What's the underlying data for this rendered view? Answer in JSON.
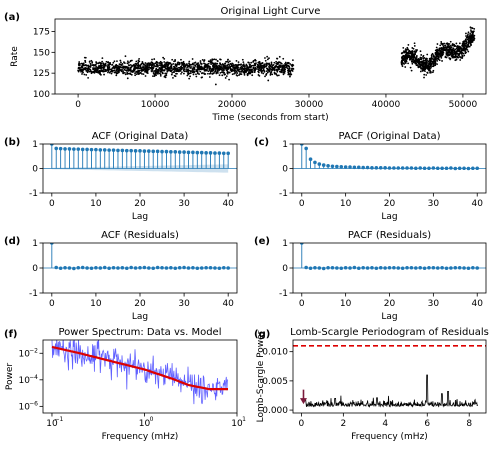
{
  "figure": {
    "background": "#ffffff"
  },
  "chart_data": [
    {
      "panel": "(a)",
      "type": "scatter",
      "title": "Original Light Curve",
      "xlabel": "Time (seconds from start)",
      "ylabel": "Rate",
      "xlim": [
        -3000,
        53000
      ],
      "ylim": [
        100,
        190
      ],
      "xticks": [
        0,
        10000,
        20000,
        30000,
        40000,
        50000
      ],
      "yticks": [
        100,
        125,
        150,
        175
      ],
      "color": "#000000",
      "segments": [
        {
          "x_range": [
            0,
            28000
          ],
          "mean": 131,
          "scatter": 8
        },
        {
          "x_range": [
            42000,
            51500
          ],
          "mean": 140,
          "scatter": 9,
          "rise_to": 165
        }
      ],
      "series": [
        {
          "x": [
            0,
            5000,
            10000,
            15000,
            20000,
            25000,
            28000,
            42000,
            45000,
            47000,
            49000,
            51000
          ],
          "y": [
            133,
            130,
            129,
            131,
            130,
            128,
            132,
            138,
            142,
            152,
            150,
            162
          ]
        }
      ]
    },
    {
      "panel": "(b)",
      "type": "stem",
      "title": "ACF (Original Data)",
      "xlabel": "Lag",
      "ylabel": "",
      "xlim": [
        -2,
        42
      ],
      "ylim": [
        -1,
        1
      ],
      "xticks": [
        0,
        10,
        20,
        30,
        40
      ],
      "yticks": [
        -1,
        0,
        1
      ],
      "color": "#1f77b4",
      "confidence_band": "shaded",
      "lags": [
        0,
        1,
        2,
        3,
        4,
        5,
        6,
        7,
        8,
        9,
        10,
        11,
        12,
        13,
        14,
        15,
        16,
        17,
        18,
        19,
        20,
        21,
        22,
        23,
        24,
        25,
        26,
        27,
        28,
        29,
        30,
        31,
        32,
        33,
        34,
        35,
        36,
        37,
        38,
        39,
        40
      ],
      "values": [
        1.0,
        0.82,
        0.81,
        0.8,
        0.8,
        0.79,
        0.79,
        0.78,
        0.78,
        0.77,
        0.77,
        0.76,
        0.76,
        0.75,
        0.75,
        0.74,
        0.74,
        0.73,
        0.73,
        0.72,
        0.72,
        0.71,
        0.71,
        0.7,
        0.7,
        0.69,
        0.69,
        0.68,
        0.68,
        0.67,
        0.67,
        0.66,
        0.66,
        0.65,
        0.65,
        0.64,
        0.64,
        0.63,
        0.63,
        0.62,
        0.62
      ]
    },
    {
      "panel": "(c)",
      "type": "stem",
      "title": "PACF (Original Data)",
      "xlabel": "Lag",
      "ylabel": "",
      "xlim": [
        -2,
        42
      ],
      "ylim": [
        -1,
        1
      ],
      "xticks": [
        0,
        10,
        20,
        30,
        40
      ],
      "yticks": [
        -1,
        0,
        1
      ],
      "color": "#1f77b4",
      "lags": [
        0,
        1,
        2,
        3,
        4,
        5,
        6,
        7,
        8,
        9,
        10,
        11,
        12,
        13,
        14,
        15,
        16,
        17,
        18,
        19,
        20,
        21,
        22,
        23,
        24,
        25,
        26,
        27,
        28,
        29,
        30,
        31,
        32,
        33,
        34,
        35,
        36,
        37,
        38,
        39,
        40
      ],
      "values": [
        1.0,
        0.82,
        0.38,
        0.25,
        0.18,
        0.14,
        0.11,
        0.09,
        0.08,
        0.07,
        0.06,
        0.06,
        0.05,
        0.05,
        0.04,
        0.04,
        0.03,
        0.03,
        0.03,
        0.03,
        0.02,
        0.02,
        0.02,
        0.02,
        0.02,
        0.02,
        0.01,
        0.02,
        0.01,
        0.01,
        0.02,
        0.01,
        0.01,
        0.01,
        0.02,
        0.0,
        0.01,
        0.01,
        0.0,
        0.01,
        0.01
      ]
    },
    {
      "panel": "(d)",
      "type": "stem",
      "title": "ACF (Residuals)",
      "xlabel": "Lag",
      "ylabel": "",
      "xlim": [
        -2,
        42
      ],
      "ylim": [
        -1,
        1
      ],
      "xticks": [
        0,
        10,
        20,
        30,
        40
      ],
      "yticks": [
        -1,
        0,
        1
      ],
      "color": "#1f77b4",
      "lags": [
        0,
        1,
        2,
        3,
        4,
        5,
        6,
        7,
        8,
        9,
        10,
        11,
        12,
        13,
        14,
        15,
        16,
        17,
        18,
        19,
        20,
        21,
        22,
        23,
        24,
        25,
        26,
        27,
        28,
        29,
        30,
        31,
        32,
        33,
        34,
        35,
        36,
        37,
        38,
        39,
        40
      ],
      "values": [
        1.0,
        0.02,
        -0.01,
        0.01,
        0.0,
        -0.02,
        0.01,
        0.02,
        0.0,
        -0.01,
        0.01,
        0.0,
        0.02,
        -0.01,
        0.01,
        0.0,
        0.01,
        -0.01,
        0.02,
        0.0,
        0.01,
        0.02,
        0.0,
        -0.01,
        0.02,
        0.01,
        0.0,
        0.01,
        -0.01,
        0.01,
        0.02,
        0.0,
        0.01,
        -0.01,
        0.0,
        0.01,
        0.01,
        0.0,
        -0.01,
        0.01,
        0.0
      ]
    },
    {
      "panel": "(e)",
      "type": "stem",
      "title": "PACF (Residuals)",
      "xlabel": "Lag",
      "ylabel": "",
      "xlim": [
        -2,
        42
      ],
      "ylim": [
        -1,
        1
      ],
      "xticks": [
        0,
        10,
        20,
        30,
        40
      ],
      "yticks": [
        -1,
        0,
        1
      ],
      "color": "#1f77b4",
      "lags": [
        0,
        1,
        2,
        3,
        4,
        5,
        6,
        7,
        8,
        9,
        10,
        11,
        12,
        13,
        14,
        15,
        16,
        17,
        18,
        19,
        20,
        21,
        22,
        23,
        24,
        25,
        26,
        27,
        28,
        29,
        30,
        31,
        32,
        33,
        34,
        35,
        36,
        37,
        38,
        39,
        40
      ],
      "values": [
        1.0,
        0.02,
        -0.01,
        0.01,
        0.0,
        -0.02,
        0.01,
        0.01,
        0.0,
        -0.01,
        0.01,
        0.0,
        0.02,
        -0.01,
        0.01,
        0.0,
        0.01,
        -0.01,
        0.01,
        0.0,
        0.01,
        0.01,
        0.0,
        -0.01,
        0.01,
        0.01,
        0.0,
        0.01,
        -0.01,
        0.01,
        0.01,
        0.0,
        0.01,
        -0.01,
        0.0,
        0.01,
        0.01,
        0.0,
        -0.01,
        0.01,
        0.0
      ]
    },
    {
      "panel": "(f)",
      "type": "line",
      "scale": "log-log",
      "title": "Power Spectrum: Data vs. Model",
      "xlabel": "Frequency (mHz)",
      "ylabel": "Power",
      "xlim": [
        0.08,
        10
      ],
      "ylim": [
        3.16e-07,
        0.1
      ],
      "xticks": [
        0.1,
        1,
        10
      ],
      "xtick_labels": [
        "10",
        "10",
        "10"
      ],
      "xtick_exps": [
        "−1",
        "0",
        "1"
      ],
      "yticks": [
        1e-06,
        0.0001,
        0.01
      ],
      "ytick_labels": [
        "10",
        "10",
        "10"
      ],
      "ytick_exps": [
        "−6",
        "−4",
        "−2"
      ],
      "series": [
        {
          "role": "data",
          "color": "#4444ff",
          "style": "noisy",
          "points": 300
        },
        {
          "role": "model",
          "color": "#dd0000",
          "x": [
            0.1,
            0.2,
            0.5,
            1,
            2,
            3,
            5,
            8
          ],
          "y": [
            0.03,
            0.01,
            0.002,
            0.0006,
            0.00012,
            4e-05,
            2e-05,
            2e-05
          ]
        }
      ]
    },
    {
      "panel": "(g)",
      "type": "line",
      "title": "Lomb-Scargle Periodogram of Residuals",
      "xlabel": "Frequency (mHz)",
      "ylabel": "Lomb-Scargle Power",
      "xlim": [
        -0.4,
        8.8
      ],
      "ylim": [
        -0.0005,
        0.012
      ],
      "xticks": [
        0,
        2,
        4,
        6,
        8
      ],
      "yticks": [
        0.0,
        0.005,
        0.01
      ],
      "ytick_labels": [
        "0.000",
        "0.005",
        "0.010"
      ],
      "threshold": {
        "value": 0.011,
        "color": "#dd0000",
        "style": "dashed"
      },
      "arrow": {
        "x": 0.1,
        "y_from": 0.0035,
        "y_to": 0.0012,
        "color": "#7b1a3c"
      },
      "series": [
        {
          "color": "#000000",
          "peaks": [
            {
              "x": 6.0,
              "y": 0.006
            },
            {
              "x": 7.0,
              "y": 0.0032
            },
            {
              "x": 6.7,
              "y": 0.0028
            },
            {
              "x": 3.6,
              "y": 0.0021
            },
            {
              "x": 1.6,
              "y": 0.002
            }
          ]
        }
      ]
    }
  ]
}
